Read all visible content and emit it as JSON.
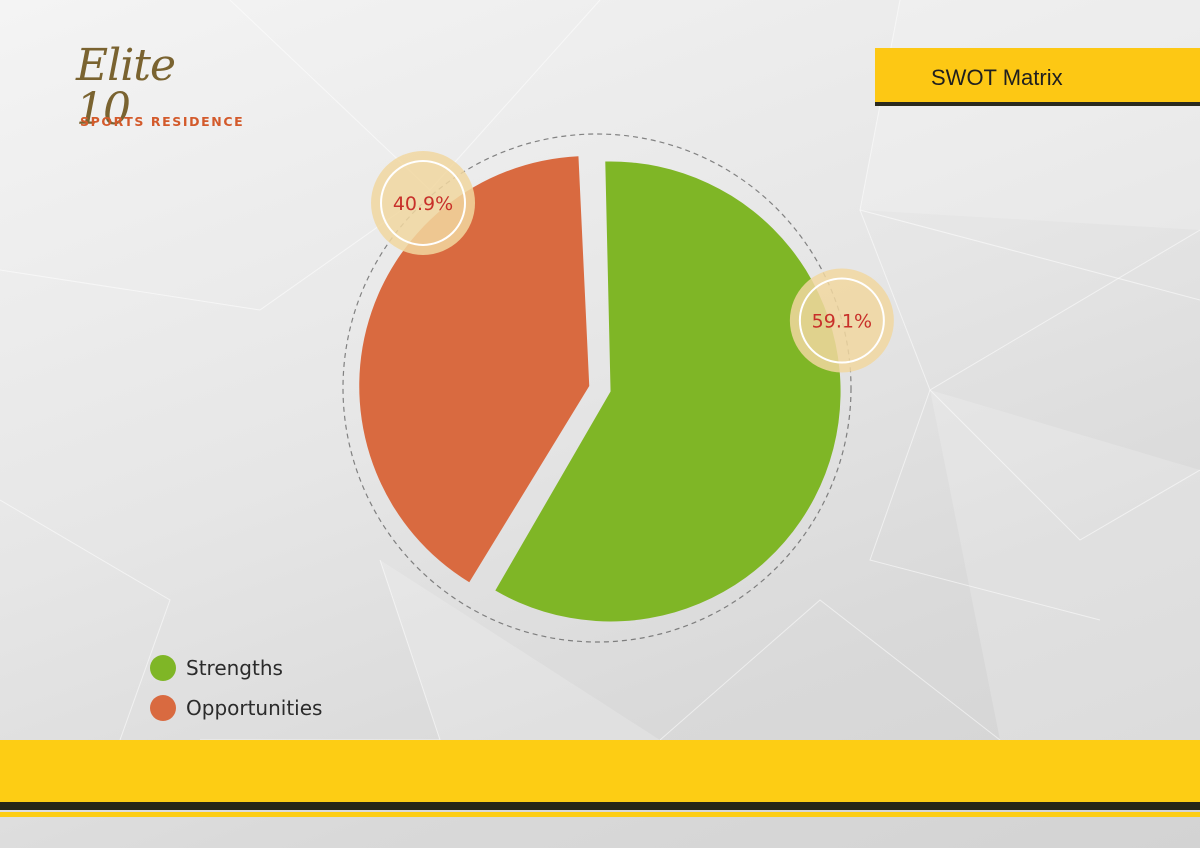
{
  "logo": {
    "script_text": "Elite 10",
    "subtitle": "SPORTS RESIDENCE"
  },
  "header": {
    "title": "SWOT Matrix"
  },
  "colors": {
    "strengths": "#7fb626",
    "opportunities": "#d96a40",
    "accent_yellow": "#fdcd14",
    "label_red": "#c8302a",
    "badge_fill": "#f1d7a0"
  },
  "chart_data": {
    "type": "pie",
    "categories": [
      "Strengths",
      "Opportunities"
    ],
    "values": [
      59.1,
      40.9
    ],
    "labels": [
      "59.1%",
      "40.9%"
    ],
    "title": "",
    "legend_position": "bottom-left"
  },
  "legend": {
    "items": [
      {
        "label": "Strengths",
        "color": "#7fb626"
      },
      {
        "label": "Opportunities",
        "color": "#d96a40"
      }
    ]
  }
}
